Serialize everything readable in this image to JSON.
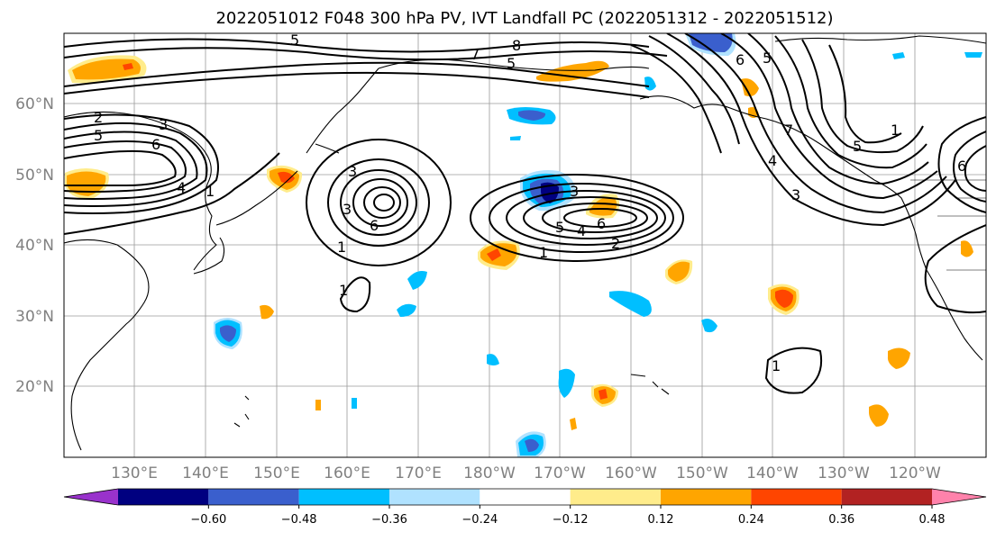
{
  "title": "2022051012 F048 300 hPa PV, IVT Landfall PC (2022051312 - 2022051512)",
  "lat_labels": [
    "60°N",
    "50°N",
    "40°N",
    "30°N",
    "20°N"
  ],
  "lon_labels": [
    "130°E",
    "140°E",
    "150°E",
    "160°E",
    "170°E",
    "180°W",
    "170°W",
    "160°W",
    "150°W",
    "140°W",
    "130°W",
    "120°W"
  ],
  "map_extent": {
    "lon_min": 120,
    "lon_max": 250,
    "lat_min": 10,
    "lat_max": 70
  },
  "colorbar": {
    "levels": [
      -0.72,
      -0.6,
      -0.48,
      -0.36,
      -0.24,
      -0.12,
      0.12,
      0.24,
      0.36,
      0.48,
      0.6,
      0.72
    ],
    "tick_labels": [
      "−0.60",
      "−0.48",
      "−0.36",
      "−0.24",
      "−0.12",
      "0.12",
      "0.24",
      "0.36",
      "0.48",
      "0.60"
    ],
    "colors": [
      "#9932cc",
      "#000080",
      "#3a5fcd",
      "#00bfff",
      "#b0e2ff",
      "#ffffff",
      "#ffec8b",
      "#ffa500",
      "#ff4500",
      "#b22222",
      "#ff82ab"
    ]
  },
  "contour_labels": [
    "5",
    "7",
    "8",
    "5",
    "6",
    "5",
    "2",
    "3",
    "5",
    "6",
    "4",
    "1",
    "3",
    "3",
    "6",
    "1",
    "3",
    "5",
    "4",
    "6",
    "2",
    "1",
    "1",
    "1",
    "7",
    "4",
    "3",
    "1",
    "5",
    "6"
  ]
}
